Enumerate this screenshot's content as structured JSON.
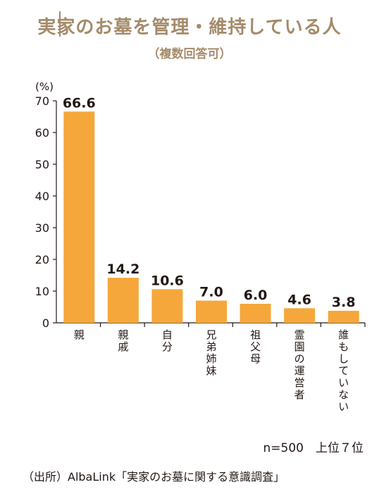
{
  "title": "実家のお墓を管理・維持している人",
  "subtitle": "（複数回答可）",
  "footer": {
    "n_label": "n=500　上位７位",
    "source": "（出所）AlbaLink「実家のお墓に関する意識調査」"
  },
  "colors": {
    "bar": "#f5a73b",
    "title": "#a48b6b",
    "text": "#231815"
  },
  "chart_data": {
    "type": "bar",
    "categories": [
      "親",
      "親戚",
      "自分",
      "兄弟姉妹",
      "祖父母",
      "霊園の運営者",
      "誰もしていない"
    ],
    "values": [
      66.6,
      14.2,
      10.6,
      7.0,
      6.0,
      4.6,
      3.8
    ],
    "value_labels": [
      "66.6",
      "14.2",
      "10.6",
      "7.0",
      "6.0",
      "4.6",
      "3.8"
    ],
    "yunit": "(%)",
    "ylim": [
      0,
      70
    ],
    "yticks": [
      0,
      10,
      20,
      30,
      40,
      50,
      60,
      70
    ],
    "grid": false
  }
}
